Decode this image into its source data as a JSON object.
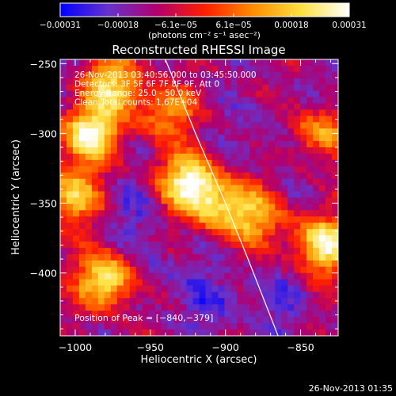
{
  "chart_data": {
    "type": "heatmap",
    "title": "Reconstructed RHESSI Image",
    "xlabel": "Heliocentric X (arcsec)",
    "ylabel": "Heliocentric Y (arcsec)",
    "xlim": [
      -1010,
      -825
    ],
    "ylim": [
      -445,
      -247
    ],
    "x_ticks": [
      -1000,
      -950,
      -900,
      -850
    ],
    "y_ticks": [
      -250,
      -300,
      -350,
      -400
    ],
    "x_tick_labels": [
      "−1000",
      "−950",
      "−900",
      "−850"
    ],
    "y_tick_labels": [
      "−250",
      "−300",
      "−350",
      "−400"
    ],
    "colorbar": {
      "range": [
        -0.00031,
        0.00031
      ],
      "tick_labels": [
        "−0.00031",
        "−0.00018",
        "−6.1e−05",
        "6.1e−05",
        "0.00018",
        "0.00031"
      ],
      "units_label": "(photons cm⁻² s⁻¹ asec⁻²)",
      "stops": [
        "#0000ff",
        "#6633cc",
        "#b1006f",
        "#ff1e00",
        "#ff8c00",
        "#ffe040",
        "#ffffff"
      ]
    },
    "annotations": [
      "26-Nov-2013 03:40:56.000 to 03:45:50.000",
      "Detectors: 3F 5F 6F 7F 8F 9F, Att 0",
      "Energy Range: 25.0 - 50.0 keV",
      "Clean     Total counts: 1.67E+04"
    ],
    "peak_label": "Position of Peak = [−840,−379]",
    "limb_curve": [
      [
        -940,
        -247
      ],
      [
        -920,
        -300
      ],
      [
        -900,
        -350
      ],
      [
        -885,
        -390
      ],
      [
        -865,
        -445
      ]
    ],
    "bright_sources": [
      {
        "x": -990,
        "y": -300,
        "amplitude": 1.0
      },
      {
        "x": -975,
        "y": -265,
        "amplitude": 0.8
      },
      {
        "x": -1002,
        "y": -345,
        "amplitude": 0.75
      },
      {
        "x": -978,
        "y": -405,
        "amplitude": 1.0
      },
      {
        "x": -925,
        "y": -335,
        "amplitude": 1.0
      },
      {
        "x": -905,
        "y": -352,
        "amplitude": 0.7
      },
      {
        "x": -880,
        "y": -360,
        "amplitude": 0.6
      },
      {
        "x": -835,
        "y": -380,
        "amplitude": 1.0
      },
      {
        "x": -840,
        "y": -300,
        "amplitude": 0.75
      },
      {
        "x": -940,
        "y": -285,
        "amplitude": 0.55
      }
    ],
    "dim_regions": [
      {
        "x": -860,
        "y": -300,
        "amplitude": 0.8
      },
      {
        "x": -950,
        "y": -400,
        "amplitude": 0.6
      },
      {
        "x": -910,
        "y": -420,
        "amplitude": 0.55
      },
      {
        "x": -870,
        "y": -420,
        "amplitude": 0.5
      },
      {
        "x": -955,
        "y": -355,
        "amplitude": 0.5
      }
    ]
  },
  "footer": {
    "timestamp": "26-Nov-2013 01:35"
  }
}
